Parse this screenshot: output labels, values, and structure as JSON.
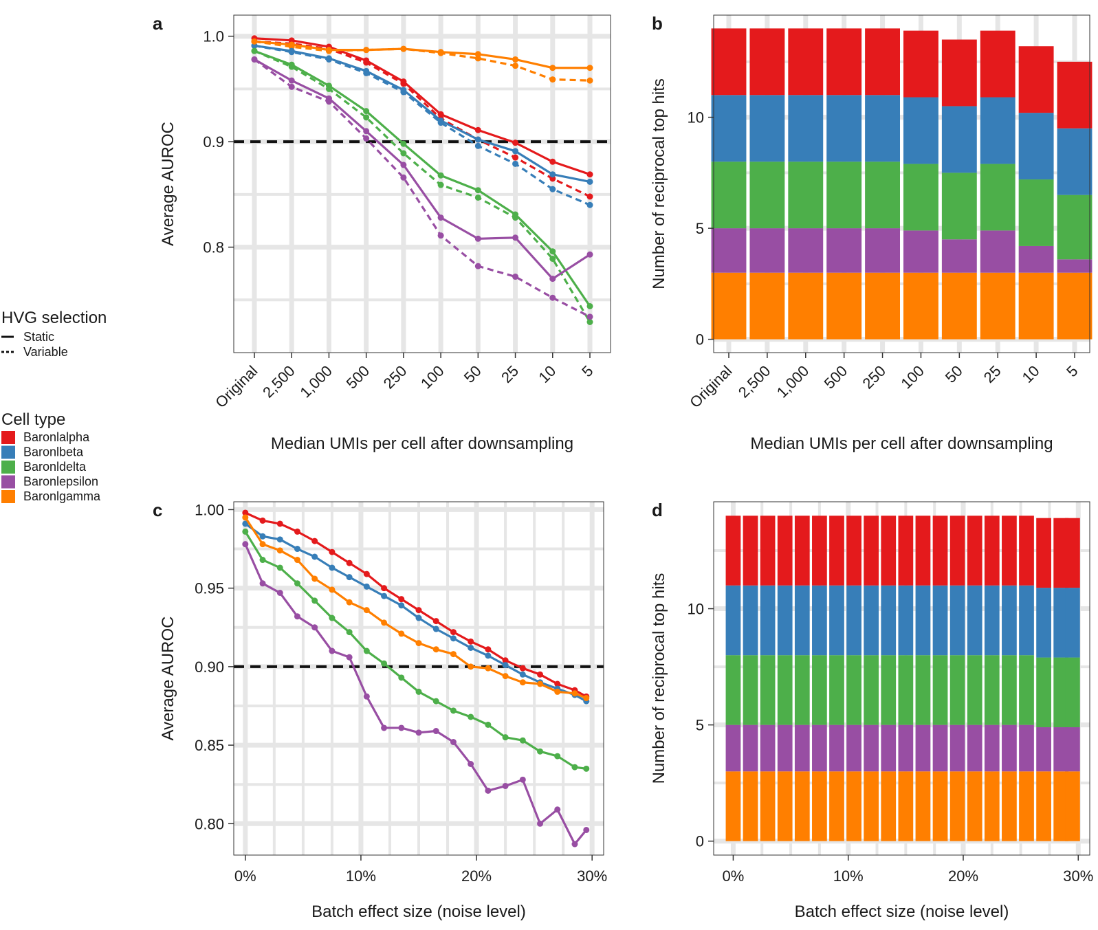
{
  "legend": {
    "hvg_title": "HVG selection",
    "hvg_items": [
      {
        "label": "Static",
        "style": "solid"
      },
      {
        "label": "Variable",
        "style": "dashed"
      }
    ],
    "cell_title": "Cell type",
    "cell_items": [
      {
        "label": "Baronlalpha",
        "color": "#e41a1c"
      },
      {
        "label": "Baronlbeta",
        "color": "#377eb8"
      },
      {
        "label": "Baronldelta",
        "color": "#4daf4a"
      },
      {
        "label": "Baronlepsilon",
        "color": "#984ea3"
      },
      {
        "label": "Baronlgamma",
        "color": "#ff7f00"
      }
    ]
  },
  "chart_data": [
    {
      "panel": "a",
      "type": "line",
      "xlabel": "Median UMIs per cell after downsampling",
      "ylabel": "Average AUROC",
      "categories": [
        "Original",
        "2,500",
        "1,000",
        "500",
        "250",
        "100",
        "50",
        "25",
        "10",
        "5"
      ],
      "ylim": [
        0.7,
        1.02
      ],
      "yticks": [
        0.8,
        0.9,
        1.0
      ],
      "ytick_labels": [
        "0.8",
        "0.9",
        "1.0"
      ],
      "threshold": 0.9,
      "series": [
        {
          "name": "Baronlalpha",
          "hvg": "Static",
          "color": "#e41a1c",
          "values": [
            0.998,
            0.996,
            0.99,
            0.977,
            0.957,
            0.926,
            0.911,
            0.899,
            0.881,
            0.869
          ]
        },
        {
          "name": "Baronlalpha",
          "hvg": "Variable",
          "color": "#e41a1c",
          "values": [
            0.995,
            0.993,
            0.988,
            0.975,
            0.955,
            0.922,
            0.902,
            0.885,
            0.865,
            0.848
          ]
        },
        {
          "name": "Baronlbeta",
          "hvg": "Static",
          "color": "#377eb8",
          "values": [
            0.991,
            0.986,
            0.979,
            0.967,
            0.949,
            0.92,
            0.902,
            0.891,
            0.869,
            0.862
          ]
        },
        {
          "name": "Baronlbeta",
          "hvg": "Variable",
          "color": "#377eb8",
          "values": [
            0.991,
            0.985,
            0.978,
            0.965,
            0.947,
            0.918,
            0.896,
            0.879,
            0.855,
            0.84
          ]
        },
        {
          "name": "Baronldelta",
          "hvg": "Static",
          "color": "#4daf4a",
          "values": [
            0.986,
            0.973,
            0.953,
            0.929,
            0.898,
            0.868,
            0.854,
            0.831,
            0.796,
            0.744
          ]
        },
        {
          "name": "Baronldelta",
          "hvg": "Variable",
          "color": "#4daf4a",
          "values": [
            0.986,
            0.971,
            0.95,
            0.923,
            0.889,
            0.859,
            0.847,
            0.828,
            0.789,
            0.729
          ]
        },
        {
          "name": "Baronlepsilon",
          "hvg": "Static",
          "color": "#984ea3",
          "values": [
            0.978,
            0.958,
            0.941,
            0.91,
            0.878,
            0.828,
            0.808,
            0.809,
            0.77,
            0.793
          ]
        },
        {
          "name": "Baronlepsilon",
          "hvg": "Variable",
          "color": "#984ea3",
          "values": [
            0.978,
            0.952,
            0.938,
            0.903,
            0.866,
            0.811,
            0.782,
            0.772,
            0.752,
            0.734
          ]
        },
        {
          "name": "Baronlgamma",
          "hvg": "Static",
          "color": "#ff7f00",
          "values": [
            0.995,
            0.992,
            0.987,
            0.987,
            0.988,
            0.985,
            0.983,
            0.978,
            0.97,
            0.97
          ]
        },
        {
          "name": "Baronlgamma",
          "hvg": "Variable",
          "color": "#ff7f00",
          "values": [
            0.995,
            0.99,
            0.986,
            0.987,
            0.988,
            0.984,
            0.979,
            0.972,
            0.959,
            0.958
          ]
        }
      ]
    },
    {
      "panel": "b",
      "type": "bar",
      "stacked": true,
      "xlabel": "Median UMIs per cell after downsampling",
      "ylabel": "Number of reciprocal top hits",
      "categories": [
        "Original",
        "2,500",
        "1,000",
        "500",
        "250",
        "100",
        "50",
        "25",
        "10",
        "5"
      ],
      "ylim": [
        -0.6,
        14.6
      ],
      "yticks": [
        0,
        5,
        10
      ],
      "ytick_labels": [
        "0",
        "5",
        "10"
      ],
      "series": [
        {
          "name": "Baronlgamma",
          "color": "#ff7f00",
          "values": [
            3,
            3,
            3,
            3,
            3,
            3,
            3,
            3,
            3,
            3
          ]
        },
        {
          "name": "Baronlepsilon",
          "color": "#984ea3",
          "values": [
            2,
            2,
            2,
            2,
            2,
            1.9,
            1.5,
            1.9,
            1.2,
            0.6
          ]
        },
        {
          "name": "Baronldelta",
          "color": "#4daf4a",
          "values": [
            3,
            3,
            3,
            3,
            3,
            3,
            3,
            3,
            3,
            2.9
          ]
        },
        {
          "name": "Baronlbeta",
          "color": "#377eb8",
          "values": [
            3,
            3,
            3,
            3,
            3,
            3,
            3,
            3,
            3,
            3
          ]
        },
        {
          "name": "Baronlalpha",
          "color": "#e41a1c",
          "values": [
            3,
            3,
            3,
            3,
            3,
            3,
            3,
            3,
            3,
            3
          ]
        }
      ]
    },
    {
      "panel": "c",
      "type": "line",
      "xlabel": "Batch effect size (noise level)",
      "ylabel": "Average AUROC",
      "x": [
        0,
        1.5,
        3,
        4.5,
        6,
        7.5,
        9,
        10.5,
        12,
        13.5,
        15,
        16.5,
        18,
        19.5,
        21,
        22.5,
        24,
        25.5,
        27,
        28.5,
        29.5
      ],
      "xlim": [
        -1,
        31
      ],
      "xticks": [
        0,
        10,
        20,
        30
      ],
      "xtick_labels": [
        "0%",
        "10%",
        "20%",
        "30%"
      ],
      "ylim": [
        0.78,
        1.005
      ],
      "yticks": [
        0.8,
        0.85,
        0.9,
        0.95,
        1.0
      ],
      "ytick_labels": [
        "0.80",
        "0.85",
        "0.90",
        "0.95",
        "1.00"
      ],
      "threshold": 0.9,
      "series": [
        {
          "name": "Baronlalpha",
          "color": "#e41a1c",
          "values": [
            0.998,
            0.993,
            0.991,
            0.986,
            0.98,
            0.973,
            0.966,
            0.959,
            0.95,
            0.943,
            0.936,
            0.929,
            0.922,
            0.916,
            0.911,
            0.904,
            0.899,
            0.895,
            0.889,
            0.885,
            0.881
          ]
        },
        {
          "name": "Baronlbeta",
          "color": "#377eb8",
          "values": [
            0.991,
            0.983,
            0.981,
            0.975,
            0.97,
            0.963,
            0.957,
            0.951,
            0.945,
            0.939,
            0.931,
            0.924,
            0.918,
            0.912,
            0.907,
            0.901,
            0.895,
            0.89,
            0.886,
            0.882,
            0.878
          ]
        },
        {
          "name": "Baronldelta",
          "color": "#4daf4a",
          "values": [
            0.986,
            0.968,
            0.963,
            0.953,
            0.942,
            0.931,
            0.922,
            0.91,
            0.902,
            0.893,
            0.884,
            0.878,
            0.872,
            0.868,
            0.863,
            0.855,
            0.853,
            0.846,
            0.843,
            0.836,
            0.835
          ]
        },
        {
          "name": "Baronlepsilon",
          "color": "#984ea3",
          "values": [
            0.978,
            0.953,
            0.947,
            0.932,
            0.925,
            0.91,
            0.906,
            0.881,
            0.861,
            0.861,
            0.858,
            0.859,
            0.852,
            0.838,
            0.821,
            0.824,
            0.828,
            0.8,
            0.809,
            0.787,
            0.796
          ]
        },
        {
          "name": "Baronlgamma",
          "color": "#ff7f00",
          "values": [
            0.995,
            0.978,
            0.974,
            0.968,
            0.956,
            0.949,
            0.941,
            0.936,
            0.928,
            0.921,
            0.915,
            0.911,
            0.908,
            0.9,
            0.899,
            0.894,
            0.89,
            0.889,
            0.884,
            0.883,
            0.88
          ]
        }
      ]
    },
    {
      "panel": "d",
      "type": "bar",
      "stacked": true,
      "xlabel": "Batch effect size (noise level)",
      "ylabel": "Number of reciprocal top hits",
      "x": [
        0,
        1.5,
        3,
        4.5,
        6,
        7.5,
        9,
        10.5,
        12,
        13.5,
        15,
        16.5,
        18,
        19.5,
        21,
        22.5,
        24,
        25.5,
        27,
        28.5,
        29.5
      ],
      "bar_width": 1.3,
      "xlim": [
        -1.7,
        31
      ],
      "xticks": [
        0,
        10,
        20,
        30
      ],
      "xtick_labels": [
        "0%",
        "10%",
        "20%",
        "30%"
      ],
      "ylim": [
        -0.6,
        14.6
      ],
      "yticks": [
        0,
        5,
        10
      ],
      "ytick_labels": [
        "0",
        "5",
        "10"
      ],
      "series": [
        {
          "name": "Baronlgamma",
          "color": "#ff7f00",
          "values": [
            3,
            3,
            3,
            3,
            3,
            3,
            3,
            3,
            3,
            3,
            3,
            3,
            3,
            3,
            3,
            3,
            3,
            3,
            3,
            3,
            3
          ]
        },
        {
          "name": "Baronlepsilon",
          "color": "#984ea3",
          "values": [
            2,
            2,
            2,
            2,
            2,
            2,
            2,
            2,
            2,
            2,
            2,
            2,
            2,
            2,
            2,
            2,
            2,
            2,
            1.9,
            1.9,
            1.9
          ]
        },
        {
          "name": "Baronldelta",
          "color": "#4daf4a",
          "values": [
            3,
            3,
            3,
            3,
            3,
            3,
            3,
            3,
            3,
            3,
            3,
            3,
            3,
            3,
            3,
            3,
            3,
            3,
            3,
            3,
            3
          ]
        },
        {
          "name": "Baronlbeta",
          "color": "#377eb8",
          "values": [
            3,
            3,
            3,
            3,
            3,
            3,
            3,
            3,
            3,
            3,
            3,
            3,
            3,
            3,
            3,
            3,
            3,
            3,
            3,
            3,
            3
          ]
        },
        {
          "name": "Baronlalpha",
          "color": "#e41a1c",
          "values": [
            3,
            3,
            3,
            3,
            3,
            3,
            3,
            3,
            3,
            3,
            3,
            3,
            3,
            3,
            3,
            3,
            3,
            3,
            3,
            3,
            3
          ]
        }
      ]
    }
  ]
}
